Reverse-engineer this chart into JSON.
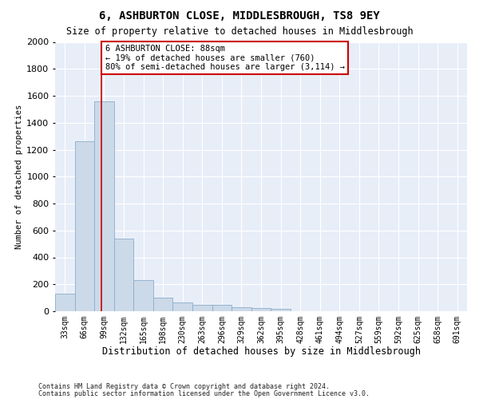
{
  "title": "6, ASHBURTON CLOSE, MIDDLESBROUGH, TS8 9EY",
  "subtitle": "Size of property relative to detached houses in Middlesbrough",
  "xlabel": "Distribution of detached houses by size in Middlesbrough",
  "ylabel": "Number of detached properties",
  "bins": [
    "33sqm",
    "66sqm",
    "99sqm",
    "132sqm",
    "165sqm",
    "198sqm",
    "230sqm",
    "263sqm",
    "296sqm",
    "329sqm",
    "362sqm",
    "395sqm",
    "428sqm",
    "461sqm",
    "494sqm",
    "527sqm",
    "559sqm",
    "592sqm",
    "625sqm",
    "658sqm",
    "691sqm"
  ],
  "values": [
    130,
    1265,
    1560,
    540,
    230,
    100,
    65,
    50,
    50,
    30,
    25,
    20,
    0,
    0,
    0,
    0,
    0,
    0,
    0,
    0,
    0
  ],
  "bar_color": "#ccd9e8",
  "bar_edge_color": "#8aaecc",
  "vline_x": 1.85,
  "vline_color": "#cc0000",
  "annotation_text": "6 ASHBURTON CLOSE: 88sqm\n← 19% of detached houses are smaller (760)\n80% of semi-detached houses are larger (3,114) →",
  "annotation_box_facecolor": "#ffffff",
  "annotation_box_edgecolor": "#cc0000",
  "ylim": [
    0,
    2000
  ],
  "yticks": [
    0,
    200,
    400,
    600,
    800,
    1000,
    1200,
    1400,
    1600,
    1800,
    2000
  ],
  "bg_color": "#e8eef8",
  "footnote_line1": "Contains HM Land Registry data © Crown copyright and database right 2024.",
  "footnote_line2": "Contains public sector information licensed under the Open Government Licence v3.0."
}
